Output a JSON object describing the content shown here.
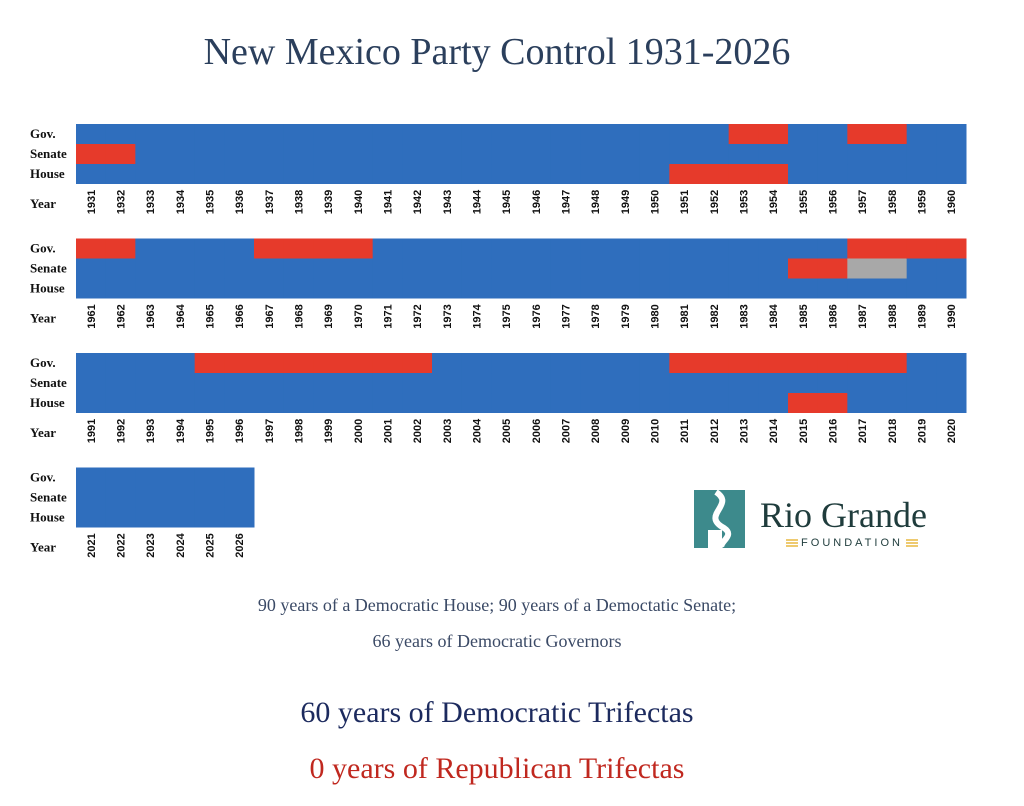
{
  "chart_data": {
    "type": "grid",
    "title": "New Mexico Party Control 1931-2026",
    "x_label": "Year",
    "x": [
      1931,
      1932,
      1933,
      1934,
      1935,
      1936,
      1937,
      1938,
      1939,
      1940,
      1941,
      1942,
      1943,
      1944,
      1945,
      1946,
      1947,
      1948,
      1949,
      1950,
      1951,
      1952,
      1953,
      1954,
      1955,
      1956,
      1957,
      1958,
      1959,
      1960,
      1961,
      1962,
      1963,
      1964,
      1965,
      1966,
      1967,
      1968,
      1969,
      1970,
      1971,
      1972,
      1973,
      1974,
      1975,
      1976,
      1977,
      1978,
      1979,
      1980,
      1981,
      1982,
      1983,
      1984,
      1985,
      1986,
      1987,
      1988,
      1989,
      1990,
      1991,
      1992,
      1993,
      1994,
      1995,
      1996,
      1997,
      1998,
      1999,
      2000,
      2001,
      2002,
      2003,
      2004,
      2005,
      2006,
      2007,
      2008,
      2009,
      2010,
      2011,
      2012,
      2013,
      2014,
      2015,
      2016,
      2017,
      2018,
      2019,
      2020,
      2021,
      2022,
      2023,
      2024,
      2025,
      2026
    ],
    "series": [
      {
        "name": "Gov.",
        "colors": [
          "#2f6ebd",
          "#2f6ebd",
          "#2f6ebd",
          "#2f6ebd",
          "#2f6ebd",
          "#2f6ebd",
          "#2f6ebd",
          "#2f6ebd",
          "#2f6ebd",
          "#2f6ebd",
          "#2f6ebd",
          "#2f6ebd",
          "#2f6ebd",
          "#2f6ebd",
          "#2f6ebd",
          "#2f6ebd",
          "#2f6ebd",
          "#2f6ebd",
          "#2f6ebd",
          "#2f6ebd",
          "#2f6ebd",
          "#2f6ebd",
          "#e63a2b",
          "#e63a2b",
          "#2f6ebd",
          "#2f6ebd",
          "#e63a2b",
          "#e63a2b",
          "#2f6ebd",
          "#2f6ebd",
          "#e63a2b",
          "#e63a2b",
          "#2f6ebd",
          "#2f6ebd",
          "#2f6ebd",
          "#2f6ebd",
          "#e63a2b",
          "#e63a2b",
          "#e63a2b",
          "#e63a2b",
          "#2f6ebd",
          "#2f6ebd",
          "#2f6ebd",
          "#2f6ebd",
          "#2f6ebd",
          "#2f6ebd",
          "#2f6ebd",
          "#2f6ebd",
          "#2f6ebd",
          "#2f6ebd",
          "#2f6ebd",
          "#2f6ebd",
          "#2f6ebd",
          "#2f6ebd",
          "#2f6ebd",
          "#2f6ebd",
          "#e63a2b",
          "#e63a2b",
          "#e63a2b",
          "#e63a2b",
          "#2f6ebd",
          "#2f6ebd",
          "#2f6ebd",
          "#2f6ebd",
          "#e63a2b",
          "#e63a2b",
          "#e63a2b",
          "#e63a2b",
          "#e63a2b",
          "#e63a2b",
          "#e63a2b",
          "#e63a2b",
          "#2f6ebd",
          "#2f6ebd",
          "#2f6ebd",
          "#2f6ebd",
          "#2f6ebd",
          "#2f6ebd",
          "#2f6ebd",
          "#2f6ebd",
          "#e63a2b",
          "#e63a2b",
          "#e63a2b",
          "#e63a2b",
          "#e63a2b",
          "#e63a2b",
          "#e63a2b",
          "#e63a2b",
          "#2f6ebd",
          "#2f6ebd",
          "#2f6ebd",
          "#2f6ebd",
          "#2f6ebd",
          "#2f6ebd",
          "#2f6ebd",
          "#2f6ebd"
        ]
      },
      {
        "name": "Senate",
        "colors": [
          "#e63a2b",
          "#e63a2b",
          "#2f6ebd",
          "#2f6ebd",
          "#2f6ebd",
          "#2f6ebd",
          "#2f6ebd",
          "#2f6ebd",
          "#2f6ebd",
          "#2f6ebd",
          "#2f6ebd",
          "#2f6ebd",
          "#2f6ebd",
          "#2f6ebd",
          "#2f6ebd",
          "#2f6ebd",
          "#2f6ebd",
          "#2f6ebd",
          "#2f6ebd",
          "#2f6ebd",
          "#2f6ebd",
          "#2f6ebd",
          "#2f6ebd",
          "#2f6ebd",
          "#2f6ebd",
          "#2f6ebd",
          "#2f6ebd",
          "#2f6ebd",
          "#2f6ebd",
          "#2f6ebd",
          "#2f6ebd",
          "#2f6ebd",
          "#2f6ebd",
          "#2f6ebd",
          "#2f6ebd",
          "#2f6ebd",
          "#2f6ebd",
          "#2f6ebd",
          "#2f6ebd",
          "#2f6ebd",
          "#2f6ebd",
          "#2f6ebd",
          "#2f6ebd",
          "#2f6ebd",
          "#2f6ebd",
          "#2f6ebd",
          "#2f6ebd",
          "#2f6ebd",
          "#2f6ebd",
          "#2f6ebd",
          "#2f6ebd",
          "#2f6ebd",
          "#2f6ebd",
          "#2f6ebd",
          "#e63a2b",
          "#e63a2b",
          "#a8a8a8",
          "#a8a8a8",
          "#2f6ebd",
          "#2f6ebd",
          "#2f6ebd",
          "#2f6ebd",
          "#2f6ebd",
          "#2f6ebd",
          "#2f6ebd",
          "#2f6ebd",
          "#2f6ebd",
          "#2f6ebd",
          "#2f6ebd",
          "#2f6ebd",
          "#2f6ebd",
          "#2f6ebd",
          "#2f6ebd",
          "#2f6ebd",
          "#2f6ebd",
          "#2f6ebd",
          "#2f6ebd",
          "#2f6ebd",
          "#2f6ebd",
          "#2f6ebd",
          "#2f6ebd",
          "#2f6ebd",
          "#2f6ebd",
          "#2f6ebd",
          "#2f6ebd",
          "#2f6ebd",
          "#2f6ebd",
          "#2f6ebd",
          "#2f6ebd",
          "#2f6ebd",
          "#2f6ebd",
          "#2f6ebd",
          "#2f6ebd",
          "#2f6ebd",
          "#2f6ebd",
          "#2f6ebd"
        ]
      },
      {
        "name": "House",
        "colors": [
          "#2f6ebd",
          "#2f6ebd",
          "#2f6ebd",
          "#2f6ebd",
          "#2f6ebd",
          "#2f6ebd",
          "#2f6ebd",
          "#2f6ebd",
          "#2f6ebd",
          "#2f6ebd",
          "#2f6ebd",
          "#2f6ebd",
          "#2f6ebd",
          "#2f6ebd",
          "#2f6ebd",
          "#2f6ebd",
          "#2f6ebd",
          "#2f6ebd",
          "#2f6ebd",
          "#2f6ebd",
          "#e63a2b",
          "#e63a2b",
          "#e63a2b",
          "#e63a2b",
          "#2f6ebd",
          "#2f6ebd",
          "#2f6ebd",
          "#2f6ebd",
          "#2f6ebd",
          "#2f6ebd",
          "#2f6ebd",
          "#2f6ebd",
          "#2f6ebd",
          "#2f6ebd",
          "#2f6ebd",
          "#2f6ebd",
          "#2f6ebd",
          "#2f6ebd",
          "#2f6ebd",
          "#2f6ebd",
          "#2f6ebd",
          "#2f6ebd",
          "#2f6ebd",
          "#2f6ebd",
          "#2f6ebd",
          "#2f6ebd",
          "#2f6ebd",
          "#2f6ebd",
          "#2f6ebd",
          "#2f6ebd",
          "#2f6ebd",
          "#2f6ebd",
          "#2f6ebd",
          "#2f6ebd",
          "#2f6ebd",
          "#2f6ebd",
          "#2f6ebd",
          "#2f6ebd",
          "#2f6ebd",
          "#2f6ebd",
          "#2f6ebd",
          "#2f6ebd",
          "#2f6ebd",
          "#2f6ebd",
          "#2f6ebd",
          "#2f6ebd",
          "#2f6ebd",
          "#2f6ebd",
          "#2f6ebd",
          "#2f6ebd",
          "#2f6ebd",
          "#2f6ebd",
          "#2f6ebd",
          "#2f6ebd",
          "#2f6ebd",
          "#2f6ebd",
          "#2f6ebd",
          "#2f6ebd",
          "#2f6ebd",
          "#2f6ebd",
          "#2f6ebd",
          "#2f6ebd",
          "#2f6ebd",
          "#2f6ebd",
          "#e63a2b",
          "#e63a2b",
          "#2f6ebd",
          "#2f6ebd",
          "#2f6ebd",
          "#2f6ebd",
          "#2f6ebd",
          "#2f6ebd",
          "#2f6ebd",
          "#2f6ebd",
          "#2f6ebd",
          "#2f6ebd"
        ]
      }
    ],
    "notes": [
      "90 years of a Democratic House; 90 years of a Democtatic Senate;",
      "66 years of Democratic Governors"
    ],
    "trifectas": [
      {
        "text": "60 years of Democratic Trifectas",
        "color": "#1c2a5e"
      },
      {
        "text": "0 years of Republican Trifectas",
        "color": "#c0281f"
      }
    ],
    "logo": {
      "name": "Rio Grande",
      "tagline": "FOUNDATION"
    }
  }
}
